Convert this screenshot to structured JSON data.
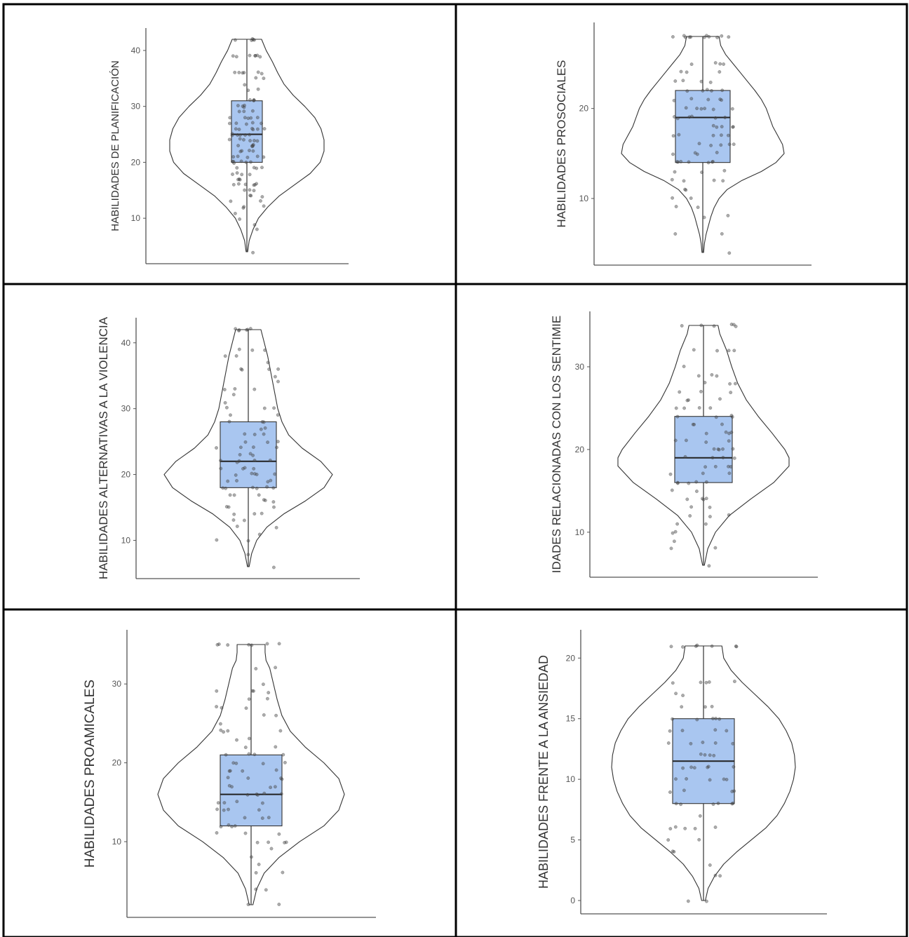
{
  "colors": {
    "box_fill": "#a9c6f0",
    "box_stroke": "#333333",
    "violin_stroke": "#333333",
    "point_fill": "#444444",
    "axis_color": "#555555",
    "cell_border": "#000000"
  },
  "chart_data": [
    {
      "type": "violin",
      "ylabel": "HABILIDADES DE PLANIFICACIÓN",
      "ylabel_display": "HABILIDADES DE PLANIFICACIÓN",
      "ylim": [
        4,
        42
      ],
      "yticks": [
        10,
        20,
        30,
        40
      ],
      "box": {
        "min": 4,
        "q1": 20,
        "median": 25,
        "q3": 31,
        "max": 42
      },
      "density": [
        [
          4,
          0.01
        ],
        [
          6,
          0.03
        ],
        [
          8,
          0.08
        ],
        [
          10,
          0.15
        ],
        [
          12,
          0.27
        ],
        [
          14,
          0.42
        ],
        [
          16,
          0.62
        ],
        [
          18,
          0.82
        ],
        [
          20,
          0.95
        ],
        [
          22,
          1.0
        ],
        [
          24,
          1.0
        ],
        [
          26,
          0.96
        ],
        [
          28,
          0.88
        ],
        [
          30,
          0.75
        ],
        [
          32,
          0.6
        ],
        [
          34,
          0.48
        ],
        [
          36,
          0.4
        ],
        [
          38,
          0.33
        ],
        [
          40,
          0.25
        ],
        [
          42,
          0.19
        ]
      ],
      "points": [
        42,
        42,
        42,
        42,
        42,
        39,
        39,
        39,
        39,
        39,
        39,
        39,
        36,
        36,
        36,
        36,
        36,
        36,
        35,
        35,
        34,
        33,
        33,
        31,
        31,
        31,
        31,
        30,
        30,
        30,
        30,
        29,
        29,
        29,
        28,
        28,
        28,
        28,
        28,
        27,
        27,
        27,
        27,
        27,
        26,
        26,
        26,
        26,
        26,
        26,
        25,
        25,
        25,
        25,
        25,
        25,
        24,
        24,
        24,
        24,
        24,
        24,
        23,
        23,
        23,
        23,
        23,
        22,
        22,
        22,
        22,
        21,
        21,
        21,
        21,
        21,
        20,
        20,
        20,
        20,
        20,
        20,
        19,
        19,
        19,
        19,
        18,
        18,
        18,
        18,
        17,
        17,
        17,
        16,
        16,
        16,
        16,
        16,
        16,
        15,
        15,
        15,
        14,
        14,
        14,
        13,
        13,
        12,
        12,
        12,
        11,
        10,
        9,
        8,
        4
      ]
    },
    {
      "type": "violin",
      "ylabel": "HABILIDADES PROSOCIALES",
      "ylabel_display": "HABILIDADES PROSOCIALES",
      "ylim": [
        4,
        28
      ],
      "yticks": [
        10,
        20
      ],
      "box": {
        "min": 4,
        "q1": 14,
        "median": 19,
        "q3": 22,
        "max": 28
      },
      "density": [
        [
          4,
          0.01
        ],
        [
          5,
          0.02
        ],
        [
          6,
          0.04
        ],
        [
          7,
          0.07
        ],
        [
          8,
          0.1
        ],
        [
          9,
          0.14
        ],
        [
          10,
          0.2
        ],
        [
          11,
          0.3
        ],
        [
          12,
          0.48
        ],
        [
          13,
          0.72
        ],
        [
          14,
          0.9
        ],
        [
          15,
          1.0
        ],
        [
          16,
          0.98
        ],
        [
          17,
          0.92
        ],
        [
          18,
          0.86
        ],
        [
          19,
          0.82
        ],
        [
          20,
          0.78
        ],
        [
          21,
          0.72
        ],
        [
          22,
          0.64
        ],
        [
          23,
          0.55
        ],
        [
          24,
          0.46
        ],
        [
          25,
          0.37
        ],
        [
          26,
          0.28
        ],
        [
          27,
          0.22
        ],
        [
          28,
          0.2
        ]
      ],
      "points": [
        28,
        28,
        28,
        28,
        28,
        28,
        28,
        28,
        28,
        28,
        28,
        25,
        25,
        25,
        25,
        24,
        24,
        24,
        23,
        23,
        23,
        23,
        22,
        22,
        22,
        22,
        22,
        21,
        21,
        21,
        21,
        21,
        20,
        20,
        20,
        20,
        20,
        20,
        19,
        19,
        19,
        19,
        19,
        19,
        18,
        18,
        18,
        18,
        18,
        17,
        17,
        17,
        17,
        17,
        16,
        16,
        16,
        16,
        16,
        15,
        15,
        15,
        15,
        14,
        14,
        14,
        14,
        14,
        14,
        14,
        13,
        13,
        13,
        12,
        12,
        12,
        12,
        11,
        11,
        10,
        10,
        9,
        9,
        8,
        8,
        6,
        6,
        4
      ]
    },
    {
      "type": "violin",
      "ylabel": "HABILIDADES ALTERNATIVAS A LA VIOLENCIA",
      "ylabel_display": "HABILIDADES ALTERNATIVAS A LA VIOLENCIA",
      "ylim": [
        6,
        42
      ],
      "yticks": [
        10,
        20,
        30,
        40
      ],
      "box": {
        "min": 6,
        "q1": 18,
        "median": 22,
        "q3": 28,
        "max": 42
      },
      "density": [
        [
          6,
          0.01
        ],
        [
          8,
          0.04
        ],
        [
          10,
          0.1
        ],
        [
          12,
          0.22
        ],
        [
          14,
          0.42
        ],
        [
          16,
          0.68
        ],
        [
          18,
          0.9
        ],
        [
          20,
          1.0
        ],
        [
          22,
          0.86
        ],
        [
          24,
          0.64
        ],
        [
          26,
          0.48
        ],
        [
          28,
          0.4
        ],
        [
          30,
          0.35
        ],
        [
          32,
          0.32
        ],
        [
          34,
          0.29
        ],
        [
          36,
          0.26
        ],
        [
          38,
          0.23
        ],
        [
          40,
          0.19
        ],
        [
          42,
          0.15
        ]
      ],
      "points": [
        42,
        42,
        42,
        42,
        42,
        42,
        39,
        39,
        39,
        38,
        38,
        37,
        36,
        36,
        36,
        36,
        35,
        34,
        33,
        33,
        33,
        32,
        31,
        30,
        30,
        30,
        29,
        29,
        28,
        28,
        28,
        27,
        27,
        26,
        26,
        26,
        25,
        25,
        25,
        24,
        24,
        24,
        24,
        23,
        23,
        23,
        22,
        22,
        22,
        22,
        22,
        21,
        21,
        21,
        21,
        20,
        20,
        20,
        20,
        20,
        19,
        19,
        19,
        19,
        18,
        18,
        18,
        18,
        18,
        18,
        17,
        17,
        17,
        16,
        16,
        16,
        15,
        15,
        15,
        14,
        14,
        14,
        13,
        13,
        12,
        12,
        11,
        10,
        10,
        8,
        6
      ]
    },
    {
      "type": "violin",
      "ylabel": "HABILIDADES RELACIONADAS CON LOS SENTIMIENTOS",
      "ylabel_display": "IDADES RELACIONADAS CON LOS SENTIMIE",
      "ylim": [
        6,
        35
      ],
      "yticks": [
        10,
        20,
        30
      ],
      "box": {
        "min": 6,
        "q1": 16,
        "median": 19,
        "q3": 24,
        "max": 35
      },
      "density": [
        [
          6,
          0.01
        ],
        [
          8,
          0.05
        ],
        [
          10,
          0.14
        ],
        [
          12,
          0.3
        ],
        [
          14,
          0.55
        ],
        [
          16,
          0.82
        ],
        [
          18,
          1.0
        ],
        [
          19,
          1.0
        ],
        [
          20,
          0.95
        ],
        [
          22,
          0.8
        ],
        [
          24,
          0.64
        ],
        [
          26,
          0.5
        ],
        [
          28,
          0.4
        ],
        [
          30,
          0.33
        ],
        [
          32,
          0.27
        ],
        [
          34,
          0.19
        ],
        [
          35,
          0.17
        ]
      ],
      "points": [
        35,
        35,
        35,
        35,
        35,
        35,
        32,
        32,
        32,
        32,
        30,
        29,
        29,
        29,
        28,
        28,
        28,
        27,
        27,
        27,
        26,
        26,
        26,
        25,
        25,
        25,
        25,
        24,
        24,
        24,
        24,
        23,
        23,
        23,
        22,
        22,
        22,
        22,
        21,
        21,
        21,
        21,
        20,
        20,
        20,
        20,
        20,
        19,
        19,
        19,
        19,
        18,
        18,
        18,
        18,
        17,
        17,
        17,
        16,
        16,
        16,
        16,
        16,
        15,
        15,
        14,
        14,
        14,
        14,
        13,
        13,
        12,
        12,
        12,
        11,
        11,
        10,
        10,
        9,
        8,
        8,
        6
      ]
    },
    {
      "type": "violin",
      "ylabel": "HABILIDADES PROAMICALES",
      "ylabel_display": "HABILIDADES PROAMICALES",
      "ylim": [
        2,
        35
      ],
      "yticks": [
        10,
        20,
        30
      ],
      "box": {
        "min": 2,
        "q1": 12,
        "median": 16,
        "q3": 21,
        "max": 35
      },
      "density": [
        [
          2,
          0.02
        ],
        [
          4,
          0.06
        ],
        [
          6,
          0.14
        ],
        [
          8,
          0.3
        ],
        [
          10,
          0.52
        ],
        [
          12,
          0.78
        ],
        [
          14,
          0.94
        ],
        [
          16,
          1.0
        ],
        [
          18,
          0.94
        ],
        [
          20,
          0.78
        ],
        [
          22,
          0.58
        ],
        [
          24,
          0.42
        ],
        [
          26,
          0.33
        ],
        [
          28,
          0.28
        ],
        [
          30,
          0.24
        ],
        [
          32,
          0.2
        ],
        [
          33,
          0.16
        ],
        [
          34,
          0.15
        ],
        [
          35,
          0.15
        ]
      ],
      "points": [
        35,
        35,
        35,
        35,
        35,
        35,
        35,
        32,
        32,
        30,
        29,
        29,
        29,
        29,
        28,
        28,
        27,
        27,
        27,
        26,
        26,
        25,
        24,
        24,
        24,
        24,
        23,
        23,
        22,
        22,
        21,
        21,
        21,
        21,
        20,
        20,
        20,
        20,
        19,
        19,
        19,
        19,
        18,
        18,
        18,
        18,
        17,
        17,
        17,
        17,
        16,
        16,
        16,
        16,
        16,
        15,
        15,
        15,
        15,
        14,
        14,
        14,
        14,
        13,
        13,
        13,
        12,
        12,
        12,
        12,
        11,
        11,
        11,
        10,
        10,
        10,
        10,
        9,
        8,
        7,
        6,
        6,
        4,
        4,
        2,
        2
      ]
    },
    {
      "type": "violin",
      "ylabel": "HABILIDADES FRENTE A LA ANSIEDAD",
      "ylabel_display": "HABILIDADES FRENTE A LA ANSIEDAD",
      "ylim": [
        0,
        21
      ],
      "yticks": [
        0,
        5,
        10,
        15,
        20
      ],
      "box": {
        "min": 0,
        "q1": 8,
        "median": 11.5,
        "q3": 15,
        "max": 21
      },
      "density": [
        [
          0,
          0.02
        ],
        [
          1,
          0.05
        ],
        [
          2,
          0.12
        ],
        [
          3,
          0.22
        ],
        [
          4,
          0.36
        ],
        [
          5,
          0.52
        ],
        [
          6,
          0.68
        ],
        [
          7,
          0.8
        ],
        [
          8,
          0.88
        ],
        [
          9,
          0.94
        ],
        [
          10,
          0.98
        ],
        [
          11,
          1.0
        ],
        [
          12,
          0.99
        ],
        [
          13,
          0.96
        ],
        [
          14,
          0.9
        ],
        [
          15,
          0.82
        ],
        [
          16,
          0.7
        ],
        [
          17,
          0.56
        ],
        [
          18,
          0.42
        ],
        [
          19,
          0.3
        ],
        [
          20,
          0.22
        ],
        [
          21,
          0.2
        ]
      ],
      "points": [
        21,
        21,
        21,
        21,
        21,
        21,
        21,
        18,
        18,
        18,
        18,
        18,
        17,
        17,
        16,
        16,
        16,
        15,
        15,
        15,
        15,
        15,
        14,
        14,
        14,
        14,
        13,
        13,
        13,
        13,
        13,
        12,
        12,
        12,
        12,
        11,
        11,
        11,
        11,
        11,
        11,
        10,
        10,
        10,
        10,
        10,
        9,
        9,
        9,
        9,
        8,
        8,
        8,
        8,
        8,
        8,
        7,
        6,
        6,
        6,
        6,
        6,
        5,
        5,
        4,
        4,
        3,
        2,
        2,
        0,
        0
      ]
    }
  ]
}
